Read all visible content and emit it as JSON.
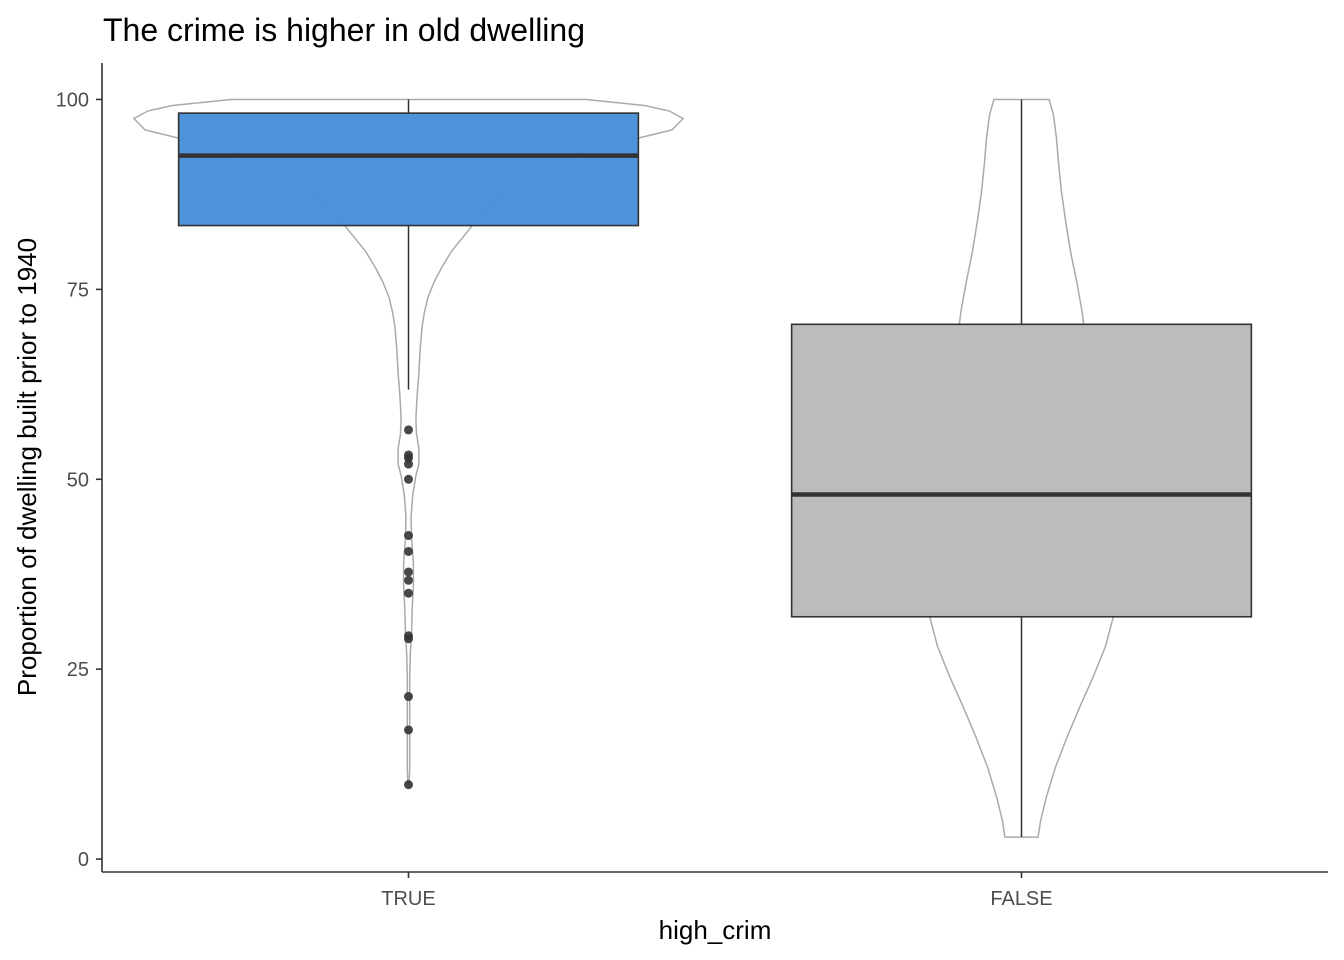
{
  "chart_data": {
    "type": "boxplot",
    "title": "The crime is higher in old dwelling",
    "xlabel": "high_crim",
    "ylabel": "Proportion of dwelling built prior to 1940",
    "categories": [
      "TRUE",
      "FALSE"
    ],
    "ylim": [
      -1.7,
      104.8
    ],
    "yticks": [
      0,
      25,
      50,
      75,
      100
    ],
    "grid": false,
    "legend": "none",
    "colors": {
      "TRUE": "#4A90D9",
      "FALSE": "#BBBBBB",
      "violin_stroke": "#AAAAAA",
      "box_stroke": "#333333",
      "outlier": "#333333"
    },
    "boxes": [
      {
        "category": "TRUE",
        "lower_whisker": 61.8,
        "q1": 83.4,
        "median": 92.6,
        "q3": 98.2,
        "upper_whisker": 100,
        "outliers": [
          56.5,
          53.2,
          52.8,
          52.0,
          50.0,
          42.6,
          40.5,
          37.8,
          36.7,
          35.0,
          29.4,
          29.0,
          21.4,
          17.0,
          9.8
        ]
      },
      {
        "category": "FALSE",
        "lower_whisker": 2.9,
        "q1": 31.9,
        "median": 48.0,
        "q3": 70.4,
        "upper_whisker": 100,
        "outliers": []
      }
    ],
    "violins": [
      {
        "category": "TRUE",
        "profile": [
          [
            100,
            0.29
          ],
          [
            99.2,
            0.385
          ],
          [
            98.5,
            0.425
          ],
          [
            97.5,
            0.448
          ],
          [
            96.0,
            0.43
          ],
          [
            95.0,
            0.38
          ],
          [
            93.5,
            0.3
          ],
          [
            92.0,
            0.24
          ],
          [
            90.0,
            0.195
          ],
          [
            88.0,
            0.16
          ],
          [
            85.0,
            0.12
          ],
          [
            82.0,
            0.09
          ],
          [
            80.0,
            0.07
          ],
          [
            78.0,
            0.055
          ],
          [
            76.0,
            0.042
          ],
          [
            74.0,
            0.032
          ],
          [
            72.0,
            0.026
          ],
          [
            70.0,
            0.022
          ],
          [
            67.0,
            0.019
          ],
          [
            64.0,
            0.017
          ],
          [
            61.0,
            0.014
          ],
          [
            58.0,
            0.012
          ],
          [
            56.0,
            0.013
          ],
          [
            54.0,
            0.017
          ],
          [
            52.0,
            0.017
          ],
          [
            50.5,
            0.012
          ],
          [
            48.0,
            0.007
          ],
          [
            45.0,
            0.004
          ],
          [
            42.0,
            0.005
          ],
          [
            39.0,
            0.008
          ],
          [
            36.0,
            0.008
          ],
          [
            33.0,
            0.006
          ],
          [
            30.0,
            0.005
          ],
          [
            27.0,
            0.003
          ],
          [
            24.0,
            0.002
          ],
          [
            21.0,
            0.002
          ],
          [
            18.0,
            0.002
          ],
          [
            15.0,
            0.002
          ],
          [
            12.0,
            0.002
          ],
          [
            9.8,
            0.001
          ]
        ]
      },
      {
        "category": "FALSE",
        "profile": [
          [
            100,
            0.045
          ],
          [
            98.0,
            0.052
          ],
          [
            95.0,
            0.057
          ],
          [
            92.0,
            0.06
          ],
          [
            88.0,
            0.065
          ],
          [
            84.0,
            0.072
          ],
          [
            80.0,
            0.08
          ],
          [
            76.0,
            0.09
          ],
          [
            72.0,
            0.099
          ],
          [
            68.0,
            0.105
          ],
          [
            64.0,
            0.112
          ],
          [
            60.0,
            0.117
          ],
          [
            56.0,
            0.124
          ],
          [
            52.0,
            0.131
          ],
          [
            48.0,
            0.137
          ],
          [
            44.0,
            0.144
          ],
          [
            40.0,
            0.151
          ],
          [
            37.0,
            0.155
          ],
          [
            35.0,
            0.155
          ],
          [
            32.0,
            0.15
          ],
          [
            28.0,
            0.137
          ],
          [
            24.0,
            0.117
          ],
          [
            20.0,
            0.095
          ],
          [
            16.0,
            0.074
          ],
          [
            12.0,
            0.055
          ],
          [
            8.0,
            0.04
          ],
          [
            5.0,
            0.031
          ],
          [
            2.9,
            0.027
          ]
        ]
      }
    ]
  }
}
